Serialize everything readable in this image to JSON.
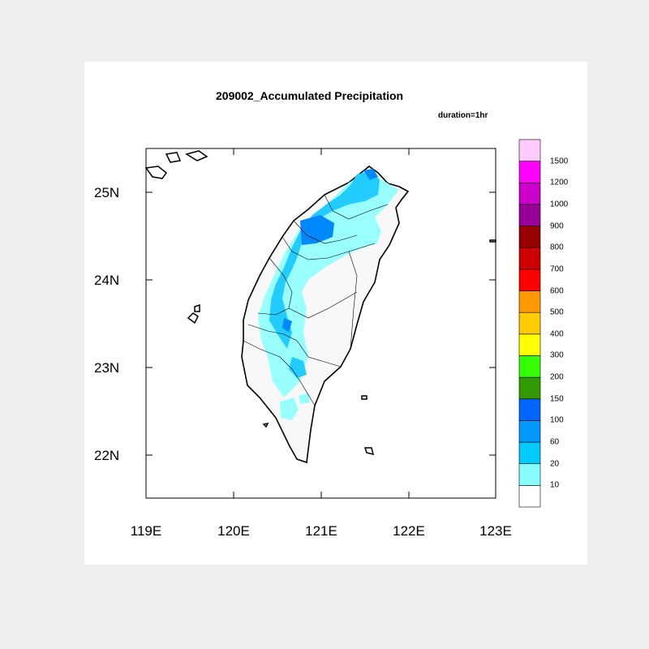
{
  "figure": {
    "title": "209002_Accumulated Precipitation",
    "subtitle": "duration=1hr"
  },
  "map": {
    "x_ticks": [
      "119E",
      "120E",
      "121E",
      "122E",
      "123E"
    ],
    "y_ticks": [
      "25N",
      "24N",
      "23N",
      "22N"
    ],
    "lon_range": [
      119,
      123
    ],
    "lat_range": [
      21.5,
      25.55
    ]
  },
  "colorbar": {
    "labels": [
      "10",
      "20",
      "60",
      "100",
      "150",
      "200",
      "300",
      "400",
      "500",
      "600",
      "700",
      "800",
      "900",
      "1000",
      "1200",
      "1500"
    ],
    "colors": [
      "#ffffff",
      "#88ffff",
      "#00ccff",
      "#0099ff",
      "#0066ff",
      "#339900",
      "#33ff00",
      "#ffff00",
      "#ffcc00",
      "#ff9900",
      "#ff0000",
      "#cc0000",
      "#990000",
      "#990099",
      "#cc00cc",
      "#ff00ff",
      "#ffccff"
    ]
  }
}
